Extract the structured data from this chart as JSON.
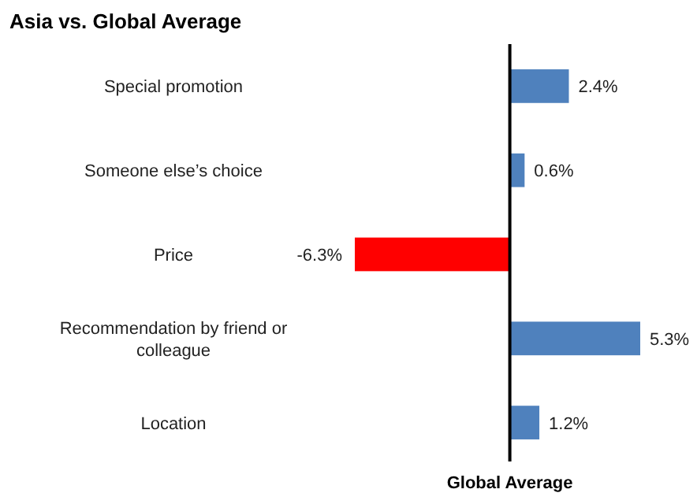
{
  "chart_data": {
    "type": "bar",
    "orientation": "horizontal",
    "title": "Asia vs. Global Average",
    "xlabel": "Global Average",
    "categories": [
      "Special promotion",
      "Someone else’s choice",
      "Price",
      "Recommendation by friend or colleague",
      "Location"
    ],
    "values": [
      2.4,
      0.6,
      -6.3,
      5.3,
      1.2
    ],
    "colors": [
      "#4f81bd",
      "#4f81bd",
      "#ff0000",
      "#4f81bd",
      "#4f81bd"
    ],
    "value_labels": [
      "2.4%",
      "0.6%",
      "-6.3%",
      "5.3%",
      "1.2%"
    ]
  }
}
